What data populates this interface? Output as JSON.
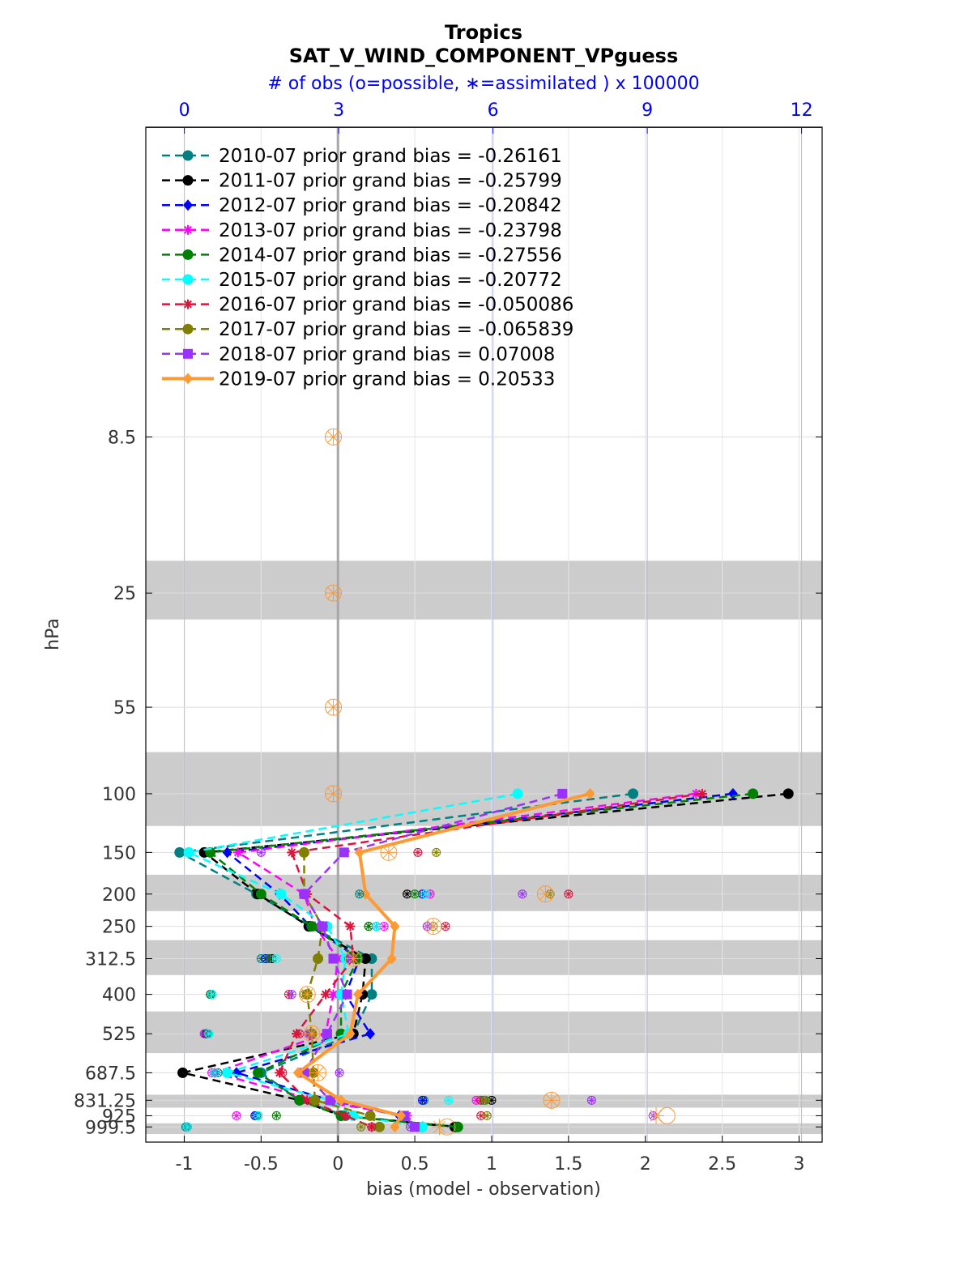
{
  "chart_data": {
    "type": "line",
    "title": "Tropics",
    "subtitle": "SAT_V_WIND_COMPONENT_VPguess",
    "top_axis_label": "# of obs (o=possible, ∗=assimilated ) x 100000",
    "xlabel": "bias (model - observation)",
    "ylabel": "hPa",
    "xlim": [
      -1.25,
      3.15
    ],
    "x_ticks": [
      -1,
      -0.5,
      0,
      0.5,
      1,
      1.5,
      2,
      2.5,
      3
    ],
    "x_tick_labels": [
      "-1",
      "-0.5",
      "0",
      "0.5",
      "1",
      "1.5",
      "2",
      "2.5",
      "3"
    ],
    "top_ticks": [
      0,
      3,
      6,
      9,
      12
    ],
    "top_tick_labels": [
      "0",
      "3",
      "6",
      "9",
      "12"
    ],
    "top_xlim": [
      -0.75,
      12.4
    ],
    "ylim_log_hpa": [
      1.0,
      1110.0
    ],
    "levels": [
      8.5,
      25,
      55,
      100,
      150,
      200,
      250,
      312.5,
      400,
      525,
      687.5,
      831.25,
      925,
      999.5
    ],
    "level_labels": [
      "8.5",
      "25",
      "55",
      "100",
      "150",
      "200",
      "250",
      "312.5",
      "400",
      "525",
      "687.5",
      "831.25",
      "925",
      "999.5"
    ],
    "shaded_bands": [
      [
        20,
        30
      ],
      [
        75,
        125
      ],
      [
        175,
        225
      ],
      [
        275,
        350
      ],
      [
        450,
        600
      ],
      [
        800,
        875
      ],
      [
        975,
        1050
      ]
    ],
    "series": [
      {
        "name": "2010-07",
        "label": "2010-07 prior grand bias = -0.26161",
        "color": "#008080",
        "marker": "circle",
        "style": "dashed",
        "bias": [
          null,
          null,
          null,
          1.92,
          -1.03,
          -0.53,
          -0.18,
          0.22,
          0.22,
          0.1,
          -0.5,
          -0.25,
          0.05,
          0.78
        ],
        "obs_possible": [
          null,
          null,
          null,
          null,
          null,
          0.14,
          0.25,
          -0.5,
          -0.83,
          -0.84,
          -0.78,
          0.56,
          -0.53,
          -0.99
        ],
        "obs_assimilated": [
          null,
          null,
          null,
          null,
          null,
          0.14,
          0.25,
          -0.5,
          -0.83,
          -0.84,
          -0.78,
          0.56,
          -0.53,
          -0.99
        ]
      },
      {
        "name": "2011-07",
        "label": "2011-07 prior grand bias = -0.25799",
        "color": "#000000",
        "marker": "circle",
        "style": "dashed",
        "bias": [
          null,
          null,
          null,
          2.93,
          -0.87,
          -0.52,
          -0.19,
          0.18,
          0.16,
          0.1,
          -1.01,
          -0.25,
          0.02,
          0.76
        ],
        "obs_possible": [
          null,
          null,
          null,
          null,
          null,
          0.45,
          0.2,
          -0.43,
          -0.82,
          -0.86,
          -0.8,
          1.0,
          -0.52,
          -0.98
        ],
        "obs_assimilated": [
          null,
          null,
          null,
          null,
          null,
          0.45,
          0.2,
          -0.43,
          -0.82,
          -0.86,
          -0.8,
          1.0,
          -0.52,
          -0.98
        ]
      },
      {
        "name": "2012-07",
        "label": "2012-07 prior grand bias = -0.20842",
        "color": "#0000ff",
        "marker": "diamond",
        "style": "dashed",
        "bias": [
          null,
          null,
          null,
          2.57,
          -0.72,
          -0.38,
          -0.18,
          0.14,
          0.05,
          0.21,
          -0.66,
          -0.05,
          0.4,
          0.55
        ],
        "obs_possible": [
          null,
          null,
          null,
          null,
          null,
          0.55,
          0.25,
          -0.47,
          -0.82,
          -0.86,
          -0.8,
          0.55,
          -0.54,
          -0.98
        ],
        "obs_assimilated": [
          null,
          null,
          null,
          null,
          null,
          0.55,
          0.25,
          -0.47,
          -0.82,
          -0.86,
          -0.8,
          0.55,
          -0.54,
          -0.98
        ]
      },
      {
        "name": "2013-07",
        "label": "2013-07 prior grand bias = -0.23798",
        "color": "#ff00ff",
        "marker": "star",
        "style": "dashed",
        "bias": [
          null,
          null,
          null,
          2.33,
          -0.65,
          -0.22,
          -0.15,
          0.0,
          -0.03,
          -0.08,
          -0.8,
          -0.15,
          0.45,
          0.5
        ],
        "obs_possible": [
          null,
          null,
          null,
          null,
          null,
          0.6,
          0.3,
          -0.45,
          -0.83,
          -0.87,
          -0.82,
          0.9,
          -0.66,
          -0.98
        ],
        "obs_assimilated": [
          null,
          null,
          null,
          null,
          null,
          0.6,
          0.3,
          -0.45,
          -0.83,
          -0.87,
          -0.82,
          0.9,
          -0.66,
          -0.98
        ]
      },
      {
        "name": "2014-07",
        "label": "2014-07 prior grand bias = -0.27556",
        "color": "#008000",
        "marker": "circle",
        "style": "dashed",
        "bias": [
          null,
          null,
          null,
          2.7,
          -0.83,
          -0.5,
          -0.17,
          0.13,
          0.02,
          0.02,
          -0.52,
          -0.25,
          0.02,
          0.78
        ],
        "obs_possible": [
          null,
          null,
          null,
          null,
          null,
          0.5,
          0.2,
          -0.45,
          -0.83,
          -0.85,
          -0.8,
          0.95,
          -0.4,
          -0.98
        ],
        "obs_assimilated": [
          null,
          null,
          null,
          null,
          null,
          0.5,
          0.2,
          -0.45,
          -0.83,
          -0.85,
          -0.8,
          0.95,
          -0.4,
          -0.98
        ]
      },
      {
        "name": "2015-07",
        "label": "2015-07 prior grand bias = -0.20772",
        "color": "#00ffff",
        "marker": "circle",
        "style": "dashed",
        "bias": [
          null,
          null,
          null,
          1.17,
          -0.97,
          -0.37,
          -0.07,
          0.05,
          0.02,
          0.07,
          -0.72,
          -0.05,
          0.1,
          0.55
        ],
        "obs_possible": [
          null,
          null,
          null,
          null,
          null,
          0.57,
          0.25,
          -0.4,
          -0.82,
          -0.84,
          -0.8,
          0.72,
          -0.52,
          -0.98
        ],
        "obs_assimilated": [
          null,
          null,
          null,
          null,
          null,
          0.57,
          0.25,
          -0.4,
          -0.82,
          -0.84,
          -0.8,
          0.72,
          -0.52,
          -0.98
        ]
      },
      {
        "name": "2016-07",
        "label": "2016-07 prior grand bias = -0.050086",
        "color": "#dc143c",
        "marker": "star",
        "style": "dashed",
        "bias": [
          null,
          null,
          null,
          2.37,
          -0.3,
          -0.2,
          0.08,
          0.1,
          -0.08,
          -0.27,
          -0.38,
          -0.2,
          0.05,
          0.22
        ],
        "obs_possible": [
          null,
          null,
          null,
          null,
          0.52,
          1.5,
          0.7,
          0.08,
          -0.32,
          -0.25,
          -0.36,
          0.93,
          0.93,
          0.22
        ],
        "obs_assimilated": [
          null,
          null,
          null,
          null,
          0.52,
          1.5,
          0.7,
          0.08,
          -0.32,
          -0.25,
          -0.36,
          0.93,
          0.93,
          0.22
        ]
      },
      {
        "name": "2017-07",
        "label": "2017-07 prior grand bias = -0.065839",
        "color": "#808000",
        "marker": "circle",
        "style": "dashed",
        "bias": [
          null,
          null,
          null,
          null,
          -0.22,
          -0.22,
          -0.1,
          -0.13,
          -0.2,
          -0.17,
          -0.16,
          -0.15,
          0.21,
          0.27
        ],
        "obs_possible": [
          null,
          null,
          null,
          null,
          0.64,
          1.38,
          0.62,
          0.1,
          -0.22,
          -0.18,
          -0.16,
          0.96,
          0.97,
          0.15
        ],
        "obs_assimilated": [
          null,
          null,
          null,
          null,
          0.64,
          1.38,
          0.62,
          0.1,
          -0.22,
          -0.18,
          -0.16,
          0.96,
          0.97,
          0.15
        ]
      },
      {
        "name": "2018-07",
        "label": "2018-07 prior grand bias = 0.07008",
        "color": "#9b30ff",
        "marker": "square",
        "style": "dashed",
        "bias": [
          null,
          null,
          null,
          1.46,
          0.04,
          -0.22,
          -0.1,
          -0.03,
          0.06,
          -0.07,
          -0.22,
          -0.05,
          0.43,
          0.5
        ],
        "obs_possible": [
          null,
          null,
          null,
          null,
          -0.5,
          1.2,
          0.58,
          0.07,
          -0.3,
          -0.19,
          0.01,
          1.65,
          2.05,
          0.47
        ],
        "obs_assimilated": [
          null,
          null,
          null,
          null,
          -0.5,
          1.2,
          0.58,
          0.07,
          -0.3,
          -0.19,
          0.01,
          1.65,
          2.05,
          0.47
        ]
      },
      {
        "name": "2019-07",
        "label": "2019-07 prior grand bias = 0.20533",
        "color": "#ff9933",
        "marker": "diamond",
        "style": "solid",
        "bias": [
          null,
          null,
          null,
          1.64,
          0.14,
          0.18,
          0.37,
          0.35,
          0.13,
          0.08,
          -0.26,
          0.02,
          0.41,
          0.37
        ],
        "obs_possible": [
          -0.03,
          -0.03,
          -0.03,
          -0.03,
          0.33,
          1.35,
          0.62,
          0.1,
          -0.2,
          -0.17,
          -0.13,
          1.39,
          2.14,
          0.71
        ],
        "obs_assimilated": [
          -0.03,
          -0.03,
          -0.03,
          -0.03,
          0.33,
          1.35,
          0.62,
          0.1,
          -0.2,
          -0.17,
          -0.13,
          1.39,
          2.07,
          0.66
        ]
      }
    ]
  }
}
